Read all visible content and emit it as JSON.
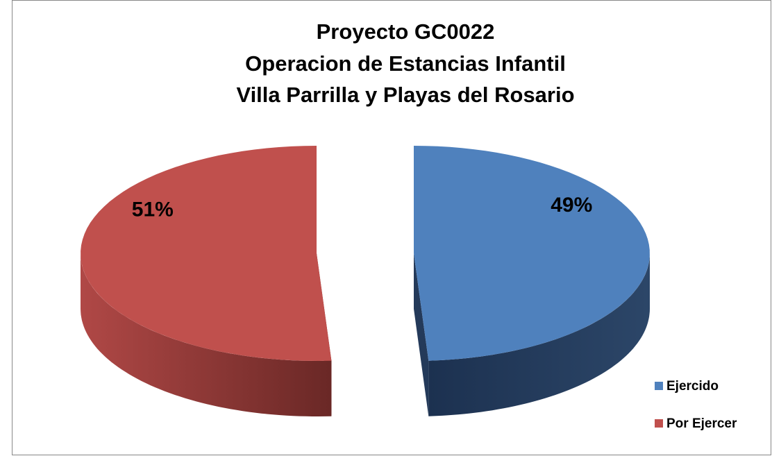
{
  "chart_data": {
    "type": "pie",
    "title": [
      "Proyecto GC0022",
      "Operacion de Estancias Infantil",
      "Villa Parrilla y Playas del Rosario"
    ],
    "categories": [
      "Ejercido",
      "Por Ejercer"
    ],
    "values": [
      49,
      51
    ],
    "value_labels": [
      "49%",
      "51%"
    ],
    "colors": [
      "#4f81bd",
      "#c0504d"
    ],
    "legend": "right"
  }
}
